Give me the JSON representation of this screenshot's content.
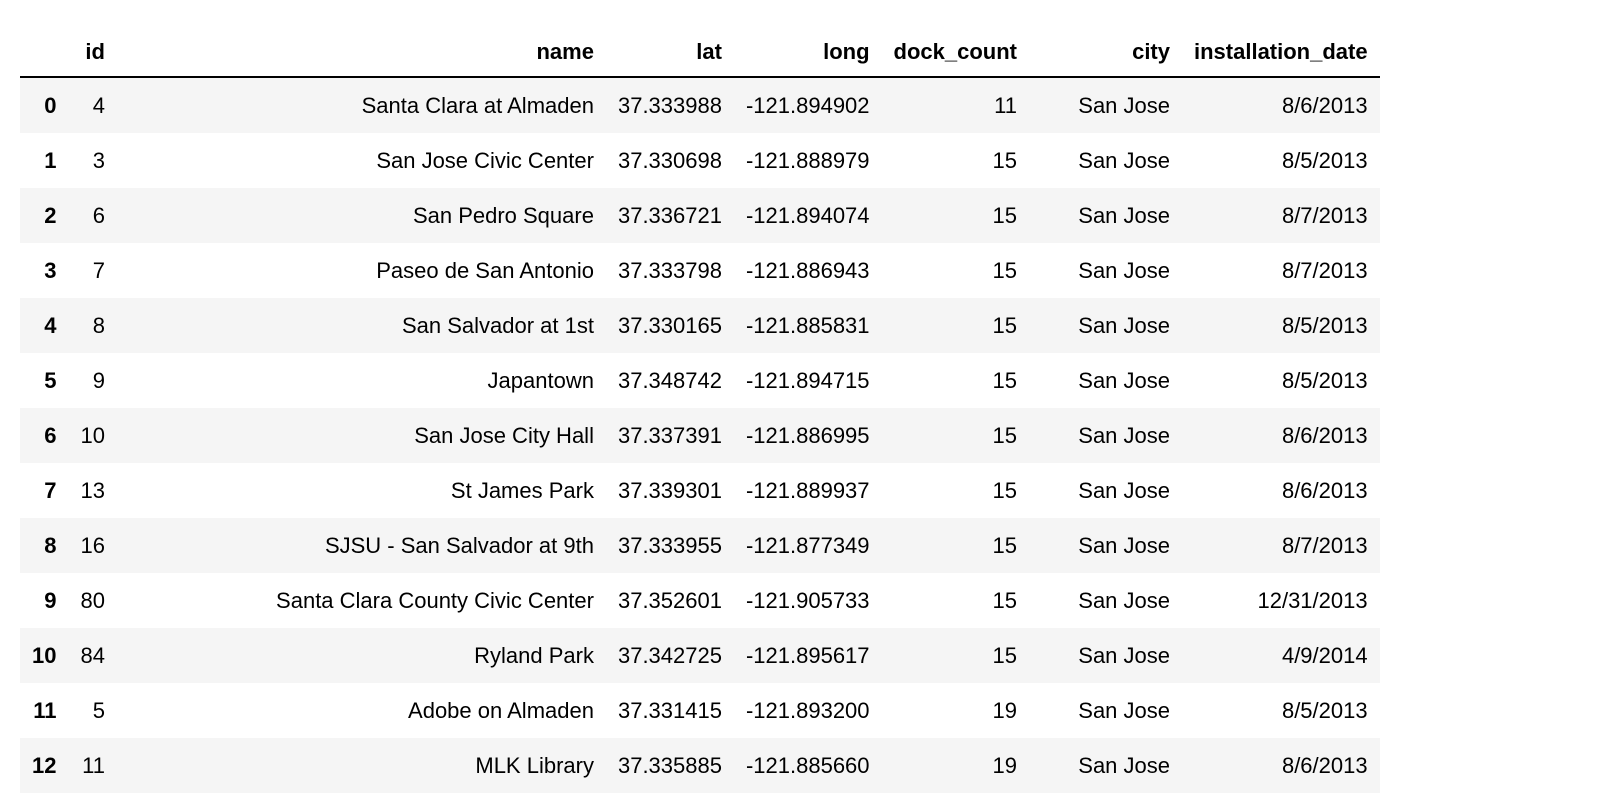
{
  "table": {
    "columns": [
      "",
      "id",
      "name",
      "lat",
      "long",
      "dock_count",
      "city",
      "installation_date"
    ],
    "rows": [
      [
        "0",
        "4",
        "Santa Clara at Almaden",
        "37.333988",
        "-121.894902",
        "11",
        "San Jose",
        "8/6/2013"
      ],
      [
        "1",
        "3",
        "San Jose Civic Center",
        "37.330698",
        "-121.888979",
        "15",
        "San Jose",
        "8/5/2013"
      ],
      [
        "2",
        "6",
        "San Pedro Square",
        "37.336721",
        "-121.894074",
        "15",
        "San Jose",
        "8/7/2013"
      ],
      [
        "3",
        "7",
        "Paseo de San Antonio",
        "37.333798",
        "-121.886943",
        "15",
        "San Jose",
        "8/7/2013"
      ],
      [
        "4",
        "8",
        "San Salvador at 1st",
        "37.330165",
        "-121.885831",
        "15",
        "San Jose",
        "8/5/2013"
      ],
      [
        "5",
        "9",
        "Japantown",
        "37.348742",
        "-121.894715",
        "15",
        "San Jose",
        "8/5/2013"
      ],
      [
        "6",
        "10",
        "San Jose City Hall",
        "37.337391",
        "-121.886995",
        "15",
        "San Jose",
        "8/6/2013"
      ],
      [
        "7",
        "13",
        "St James Park",
        "37.339301",
        "-121.889937",
        "15",
        "San Jose",
        "8/6/2013"
      ],
      [
        "8",
        "16",
        "SJSU - San Salvador at 9th",
        "37.333955",
        "-121.877349",
        "15",
        "San Jose",
        "8/7/2013"
      ],
      [
        "9",
        "80",
        "Santa Clara County Civic Center",
        "37.352601",
        "-121.905733",
        "15",
        "San Jose",
        "12/31/2013"
      ],
      [
        "10",
        "84",
        "Ryland Park",
        "37.342725",
        "-121.895617",
        "15",
        "San Jose",
        "4/9/2014"
      ],
      [
        "11",
        "5",
        "Adobe on Almaden",
        "37.331415",
        "-121.893200",
        "19",
        "San Jose",
        "8/5/2013"
      ],
      [
        "12",
        "11",
        "MLK Library",
        "37.335885",
        "-121.885660",
        "19",
        "San Jose",
        "8/6/2013"
      ]
    ]
  }
}
